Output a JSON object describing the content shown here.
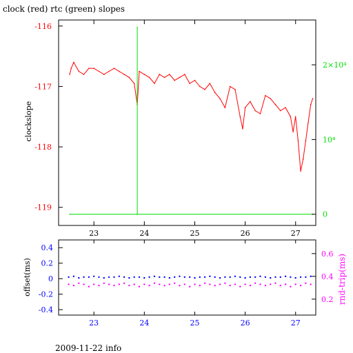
{
  "title": "clock (red) rtc (green) slopes",
  "footer": "2009-11-22 info",
  "colors": {
    "clock": "#ff0000",
    "rtc": "#00dd00",
    "offset": "#0000ff",
    "rnd_trip": "#ff00ff",
    "frame": "#000000"
  },
  "chart_data": [
    {
      "type": "line",
      "xlim": [
        22.3,
        27.4
      ],
      "x_ticks": [
        "23",
        "24",
        "25",
        "26",
        "27"
      ],
      "ylabel": "clockslope",
      "ylim": [
        -119.3,
        -115.9
      ],
      "y_ticks": [
        "-116",
        "-117",
        "-118",
        "-119"
      ],
      "y2lim": [
        -1500,
        26000
      ],
      "y2_ticks": [
        "0",
        "10⁴",
        "2×10⁴"
      ],
      "grid": false,
      "series": [
        {
          "axis": "left",
          "color": "#ff0000",
          "x": [
            22.52,
            22.55,
            22.6,
            22.7,
            22.8,
            22.9,
            23.0,
            23.1,
            23.2,
            23.3,
            23.4,
            23.5,
            23.6,
            23.7,
            23.8,
            23.86,
            23.9,
            24.0,
            24.1,
            24.2,
            24.3,
            24.4,
            24.5,
            24.6,
            24.7,
            24.8,
            24.9,
            25.0,
            25.1,
            25.2,
            25.3,
            25.4,
            25.5,
            25.6,
            25.7,
            25.8,
            25.9,
            25.95,
            26.0,
            26.1,
            26.2,
            26.3,
            26.4,
            26.5,
            26.6,
            26.7,
            26.8,
            26.9,
            26.95,
            27.0,
            27.05,
            27.1,
            27.15,
            27.2,
            27.25,
            27.3,
            27.34
          ],
          "y": [
            -116.8,
            -116.7,
            -116.6,
            -116.75,
            -116.8,
            -116.7,
            -116.7,
            -116.75,
            -116.8,
            -116.75,
            -116.7,
            -116.75,
            -116.8,
            -116.85,
            -116.95,
            -117.3,
            -116.75,
            -116.8,
            -116.85,
            -116.95,
            -116.8,
            -116.85,
            -116.8,
            -116.9,
            -116.85,
            -116.8,
            -116.95,
            -116.9,
            -117.0,
            -117.05,
            -116.95,
            -117.1,
            -117.2,
            -117.35,
            -117.0,
            -117.05,
            -117.5,
            -117.7,
            -117.35,
            -117.25,
            -117.4,
            -117.45,
            -117.15,
            -117.2,
            -117.3,
            -117.4,
            -117.35,
            -117.5,
            -117.75,
            -117.5,
            -117.9,
            -118.4,
            -118.2,
            -117.9,
            -117.6,
            -117.3,
            -117.2
          ]
        },
        {
          "axis": "right",
          "color": "#00dd00",
          "x": [
            22.52,
            23.86,
            23.86,
            23.86,
            27.34
          ],
          "y": [
            0,
            0,
            25000,
            0,
            0
          ]
        }
      ]
    },
    {
      "type": "scatter",
      "xlim": [
        22.3,
        27.4
      ],
      "x_ticks": [
        "23",
        "24",
        "25",
        "26",
        "27"
      ],
      "ylabel": "offset(ms)",
      "ylim": [
        -0.47,
        0.5
      ],
      "y_ticks": [
        "0.4",
        "0.2",
        "0",
        "-0.2",
        "-0.4"
      ],
      "y2label": "rnd-trip(ms)",
      "y2lim": [
        0.06,
        0.72
      ],
      "y2_ticks": [
        "0.6",
        "0.4",
        "0.2"
      ],
      "grid": false,
      "series": [
        {
          "name": "offset",
          "axis": "left",
          "color": "#0000ff",
          "x": [
            22.5,
            22.6,
            22.7,
            22.8,
            22.9,
            23.0,
            23.1,
            23.2,
            23.3,
            23.4,
            23.5,
            23.6,
            23.7,
            23.8,
            23.9,
            24.0,
            24.1,
            24.2,
            24.3,
            24.4,
            24.5,
            24.6,
            24.7,
            24.8,
            24.9,
            25.0,
            25.1,
            25.2,
            25.3,
            25.4,
            25.5,
            25.6,
            25.7,
            25.8,
            25.9,
            26.0,
            26.1,
            26.2,
            26.3,
            26.4,
            26.5,
            26.6,
            26.7,
            26.8,
            26.9,
            27.0,
            27.1,
            27.2,
            27.3
          ],
          "y": [
            0.02,
            0.03,
            0.01,
            0.02,
            0.02,
            0.03,
            0.02,
            0.01,
            0.02,
            0.02,
            0.03,
            0.02,
            0.01,
            0.02,
            0.02,
            0.01,
            0.02,
            0.03,
            0.02,
            0.02,
            0.01,
            0.02,
            0.03,
            0.02,
            0.02,
            0.01,
            0.02,
            0.02,
            0.03,
            0.02,
            0.01,
            0.02,
            0.02,
            0.03,
            0.02,
            0.01,
            0.02,
            0.02,
            0.03,
            0.02,
            0.01,
            0.02,
            0.02,
            0.03,
            0.02,
            0.01,
            0.02,
            0.02,
            0.03
          ]
        },
        {
          "name": "rnd-trip",
          "axis": "right",
          "color": "#ff00ff",
          "x": [
            22.5,
            22.6,
            22.7,
            22.8,
            22.9,
            23.0,
            23.1,
            23.2,
            23.3,
            23.4,
            23.5,
            23.6,
            23.7,
            23.8,
            23.9,
            24.0,
            24.1,
            24.2,
            24.3,
            24.4,
            24.5,
            24.6,
            24.7,
            24.8,
            24.9,
            25.0,
            25.1,
            25.2,
            25.3,
            25.4,
            25.5,
            25.6,
            25.7,
            25.8,
            25.9,
            26.0,
            26.1,
            26.2,
            26.3,
            26.4,
            26.5,
            26.6,
            26.7,
            26.8,
            26.9,
            27.0,
            27.1,
            27.2,
            27.3
          ],
          "y": [
            0.33,
            0.32,
            0.34,
            0.33,
            0.31,
            0.33,
            0.32,
            0.34,
            0.33,
            0.32,
            0.33,
            0.34,
            0.32,
            0.33,
            0.31,
            0.33,
            0.32,
            0.34,
            0.33,
            0.32,
            0.33,
            0.34,
            0.32,
            0.33,
            0.31,
            0.33,
            0.32,
            0.34,
            0.33,
            0.32,
            0.33,
            0.34,
            0.32,
            0.33,
            0.31,
            0.33,
            0.32,
            0.34,
            0.33,
            0.32,
            0.33,
            0.34,
            0.32,
            0.33,
            0.31,
            0.33,
            0.32,
            0.34,
            0.33
          ]
        }
      ]
    }
  ]
}
